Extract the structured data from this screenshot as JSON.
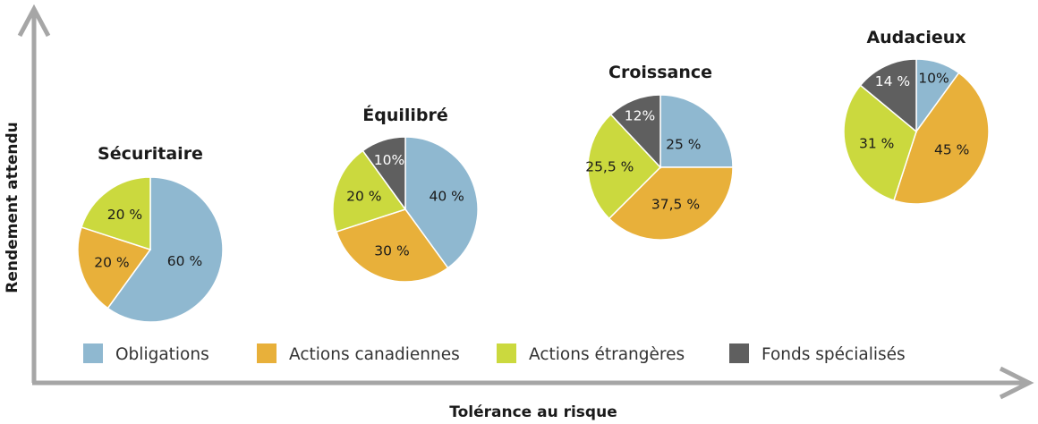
{
  "chart_data": {
    "type": "pie",
    "xlabel": "Tolérance au risque",
    "ylabel": "Rendement attendu",
    "legend": [
      {
        "name": "Obligations",
        "color": "#8fb8d0"
      },
      {
        "name": "Actions canadiennes",
        "color": "#e8b03a"
      },
      {
        "name": "Actions étrangères",
        "color": "#cbd93e"
      },
      {
        "name": "Fonds spécialisés",
        "color": "#5f5f5f"
      }
    ],
    "legend_position": "bottom",
    "pies": [
      {
        "title": "Sécuritaire",
        "slices": [
          {
            "category": "Obligations",
            "value": 60,
            "label": "60 %"
          },
          {
            "category": "Actions canadiennes",
            "value": 20,
            "label": "20 %"
          },
          {
            "category": "Actions étrangères",
            "value": 20,
            "label": "20 %"
          }
        ]
      },
      {
        "title": "Équilibré",
        "slices": [
          {
            "category": "Obligations",
            "value": 40,
            "label": "40 %"
          },
          {
            "category": "Actions canadiennes",
            "value": 30,
            "label": "30 %"
          },
          {
            "category": "Actions étrangères",
            "value": 20,
            "label": "20 %"
          },
          {
            "category": "Fonds spécialisés",
            "value": 10,
            "label": "10%"
          }
        ]
      },
      {
        "title": "Croissance",
        "slices": [
          {
            "category": "Obligations",
            "value": 25,
            "label": "25 %"
          },
          {
            "category": "Actions canadiennes",
            "value": 37.5,
            "label": "37,5 %"
          },
          {
            "category": "Actions étrangères",
            "value": 25.5,
            "label": "25,5 %"
          },
          {
            "category": "Fonds spécialisés",
            "value": 12,
            "label": "12%"
          }
        ]
      },
      {
        "title": "Audacieux",
        "slices": [
          {
            "category": "Obligations",
            "value": 10,
            "label": "10%"
          },
          {
            "category": "Actions canadiennes",
            "value": 45,
            "label": "45 %"
          },
          {
            "category": "Actions étrangères",
            "value": 31,
            "label": "31 %"
          },
          {
            "category": "Fonds spécialisés",
            "value": 14,
            "label": "14 %"
          }
        ]
      }
    ]
  }
}
